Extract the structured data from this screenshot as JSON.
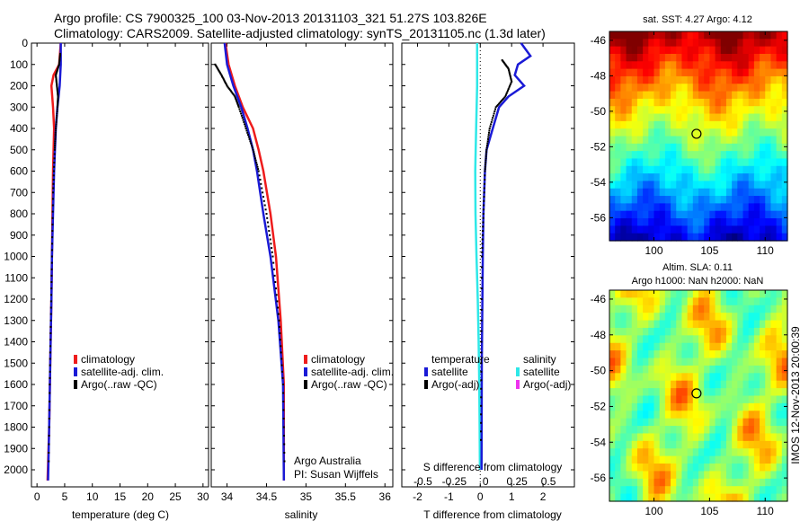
{
  "header": {
    "title_line1": "Argo profile: CS 7900325_100 03-Nov-2013 20131103_321 51.27S 103.826E",
    "title_line2": "Climatology: CARS2009. Satellite-adjusted climatology: synTS_20131105.nc (1.3d later)"
  },
  "footer": {
    "credit_line1": "Argo Australia",
    "credit_line2": "PI: Susan Wijffels",
    "stamp": "IMOS 12-Nov-2013 20:00:39"
  },
  "colors": {
    "climatology": "#ee1c1c",
    "satellite_adj": "#1a1ad6",
    "argo": "#000000",
    "sal_satellite": "#2ee8e8",
    "sal_argo": "#ee33ee"
  },
  "chart_data": [
    {
      "type": "line",
      "panel": "temperature",
      "xlabel": "temperature (deg C)",
      "ylabel": "",
      "xlim": [
        -1,
        31
      ],
      "ylim": [
        2080,
        0
      ],
      "xticks": [
        0,
        5,
        10,
        15,
        20,
        25,
        30
      ],
      "yticks": [
        0,
        100,
        200,
        300,
        400,
        500,
        600,
        700,
        800,
        900,
        1000,
        1100,
        1200,
        1300,
        1400,
        1500,
        1600,
        1700,
        1800,
        1900,
        2000
      ],
      "legend": [
        "climatology",
        "satellite-adj. clim.",
        "Argo(..raw -QC)"
      ],
      "legend_position": "lower-right",
      "series": [
        {
          "name": "climatology",
          "depth": [
            0,
            100,
            150,
            200,
            300,
            400,
            600,
            800,
            1000,
            1200,
            1500,
            1800,
            2050
          ],
          "values": [
            4.3,
            4.0,
            3.0,
            2.6,
            2.9,
            3.1,
            2.9,
            2.8,
            2.7,
            2.6,
            2.4,
            2.2,
            1.9
          ]
        },
        {
          "name": "satellite-adj. clim.",
          "depth": [
            0,
            100,
            150,
            200,
            300,
            400,
            600,
            800,
            1000,
            1200,
            1500,
            1800,
            2050
          ],
          "values": [
            4.3,
            4.3,
            4.2,
            4.1,
            3.7,
            3.4,
            3.1,
            2.9,
            2.7,
            2.6,
            2.4,
            2.2,
            2.0
          ]
        },
        {
          "name": "Argo(..raw -QC)",
          "depth": [
            50,
            100,
            150,
            200,
            250,
            300,
            400,
            500,
            700,
            1000,
            1300,
            1600,
            2000
          ],
          "values": [
            4.2,
            4.0,
            3.4,
            3.6,
            3.8,
            3.7,
            3.4,
            3.2,
            2.9,
            2.7,
            2.5,
            2.3,
            2.1
          ]
        }
      ]
    },
    {
      "type": "line",
      "panel": "salinity",
      "xlabel": "salinity",
      "ylabel": "",
      "xlim": [
        33.8,
        36.1
      ],
      "ylim": [
        2080,
        0
      ],
      "xticks": [
        34,
        34.5,
        35,
        35.5,
        36
      ],
      "legend": [
        "climatology",
        "satellite-adj. clim.",
        "Argo(..raw -QC)"
      ],
      "legend_position": "lower-right",
      "series": [
        {
          "name": "climatology",
          "depth": [
            0,
            100,
            200,
            300,
            400,
            500,
            600,
            800,
            1000,
            1300,
            1600,
            2050
          ],
          "values": [
            33.98,
            34.02,
            34.1,
            34.2,
            34.33,
            34.4,
            34.46,
            34.55,
            34.62,
            34.68,
            34.72,
            34.72
          ]
        },
        {
          "name": "satellite-adj. clim.",
          "depth": [
            0,
            100,
            200,
            300,
            400,
            500,
            600,
            800,
            1000,
            1300,
            1600,
            2050
          ],
          "values": [
            33.97,
            34.0,
            34.08,
            34.18,
            34.26,
            34.33,
            34.38,
            34.46,
            34.55,
            34.65,
            34.71,
            34.72
          ]
        },
        {
          "name": "Argo(..raw -QC)",
          "depth": [
            100,
            150,
            200,
            250,
            300,
            400,
            500,
            600,
            800,
            1000,
            1300,
            1600,
            2000
          ],
          "values": [
            33.85,
            33.93,
            34.0,
            34.1,
            34.15,
            34.24,
            34.33,
            34.4,
            34.5,
            34.58,
            34.66,
            34.71,
            34.73
          ]
        }
      ]
    },
    {
      "type": "line",
      "panel": "difference",
      "xlabel": "T difference from climatology",
      "xlabel_top": "S difference from climatology",
      "xlim": [
        -2.5,
        3
      ],
      "xticks": [
        -2,
        -1,
        0,
        1,
        2
      ],
      "xticks_secondary": [
        "-0.5",
        "-0.25",
        "0",
        "0.25",
        "0.5"
      ],
      "ylim": [
        2080,
        0
      ],
      "legend_temperature": {
        "title": "temperature",
        "items": [
          "satellite",
          "Argo(-adj)"
        ]
      },
      "legend_salinity": {
        "title": "salinity",
        "items": [
          "satellite",
          "Argo(-adj)"
        ]
      },
      "series": [
        {
          "name": "temperature satellite",
          "depth": [
            0,
            60,
            100,
            150,
            200,
            250,
            300,
            400,
            500,
            600,
            800,
            1000,
            1500,
            2000
          ],
          "values": [
            1.3,
            1.6,
            1.2,
            1.1,
            1.4,
            0.9,
            0.6,
            0.4,
            0.2,
            0.15,
            0.1,
            0.08,
            0.05,
            0.04
          ]
        },
        {
          "name": "temperature Argo(-adj)",
          "depth": [
            80,
            120,
            180,
            250,
            300,
            400,
            500,
            600,
            800,
            1000,
            1500,
            1900
          ],
          "values": [
            0.7,
            0.9,
            1.0,
            0.8,
            0.5,
            0.3,
            0.2,
            0.15,
            0.1,
            0.05,
            0.03,
            0.02
          ]
        },
        {
          "name": "salinity satellite",
          "depth": [
            0,
            200,
            400,
            600,
            800,
            1000,
            1200,
            1400,
            1600,
            1800,
            2000
          ],
          "values": [
            -0.1,
            -0.1,
            -0.13,
            -0.16,
            -0.15,
            -0.12,
            -0.08,
            -0.05,
            -0.03,
            -0.02,
            -0.01
          ]
        }
      ]
    },
    {
      "type": "heatmap",
      "panel": "sst_map",
      "title": "sat. SST: 4.27 Argo: 4.12",
      "xlim": [
        96,
        112
      ],
      "ylim": [
        -57.3,
        -45.5
      ],
      "xticks": [
        100,
        105,
        110
      ],
      "yticks": [
        -46,
        -48,
        -50,
        -52,
        -54,
        -56
      ],
      "marker": {
        "lon": 103.826,
        "lat": -51.27
      }
    },
    {
      "type": "heatmap",
      "panel": "sla_map",
      "title_line1": "Altim. SLA: 0.11",
      "title_line2": "Argo h1000: NaN h2000: NaN",
      "xlim": [
        96,
        112
      ],
      "ylim": [
        -57.3,
        -45.5
      ],
      "xticks": [
        100,
        105,
        110
      ],
      "yticks": [
        -46,
        -48,
        -50,
        -52,
        -54,
        -56
      ],
      "marker": {
        "lon": 103.826,
        "lat": -51.27
      }
    }
  ]
}
